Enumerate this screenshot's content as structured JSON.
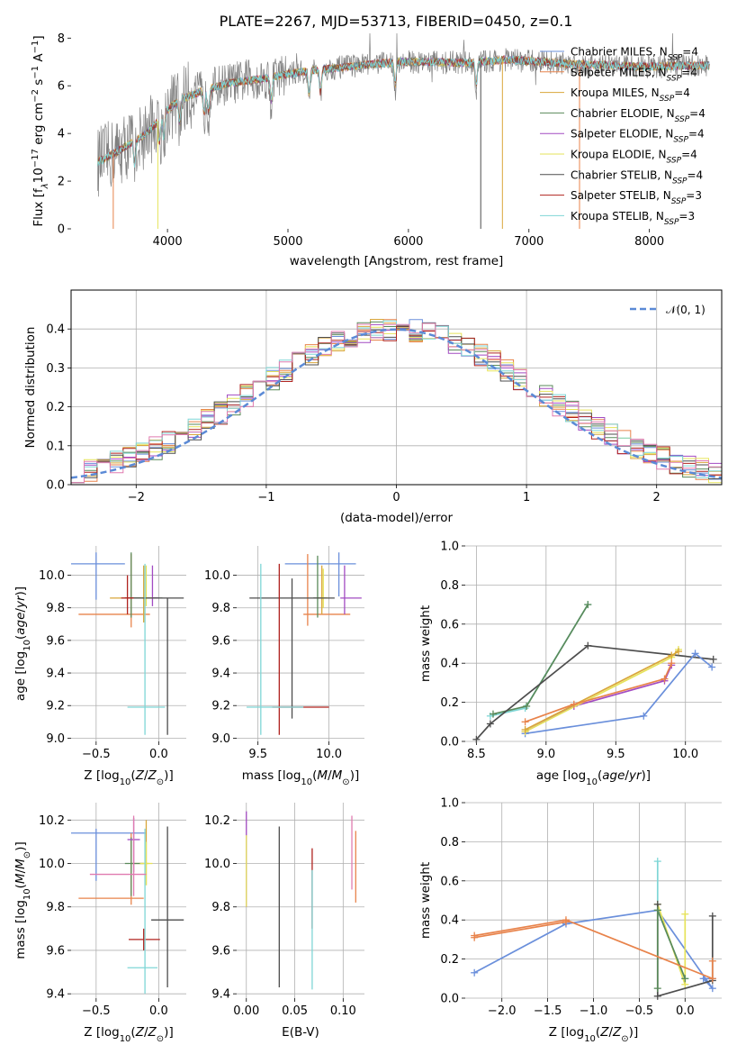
{
  "figure": {
    "title": "PLATE=2267, MJD=53713, FIBERID=0450, z=0.1"
  },
  "palette": {
    "chabrier_miles": "#6a8fdb",
    "salpeter_miles": "#e8834b",
    "kroupa_miles": "#d9a63a",
    "chabrier_elodie": "#5a8a5a",
    "salpeter_elodie": "#a24bc2",
    "kroupa_elodie": "#e6e35a",
    "chabrier_stelib": "#4d4d4d",
    "salpeter_stelib": "#b0231f",
    "kroupa_stelib": "#7fd6d6",
    "data": "#808080",
    "gaussian": "#5b8ad6",
    "grid": "#b0b0b0"
  },
  "chart_data": [
    {
      "id": "spectrum",
      "type": "line",
      "title": "PLATE=2267, MJD=53713, FIBERID=0450, z=0.1",
      "xlabel": "wavelength [Angstrom, rest frame]",
      "ylabel_parts": [
        "Flux [f",
        "λ",
        "10",
        "−17",
        " erg cm",
        "−2",
        " s",
        "−1",
        " A",
        "−1",
        "]"
      ],
      "xlim": [
        3200,
        8600
      ],
      "ylim": [
        0,
        8.2
      ],
      "xticks": [
        4000,
        5000,
        6000,
        7000,
        8000
      ],
      "yticks": [
        0,
        2,
        4,
        6,
        8
      ],
      "grid": false,
      "legend_placement": "right",
      "legend": [
        {
          "label": "Chabrier MILES, N",
          "sub": "SSP",
          "eq": "=4",
          "color_key": "chabrier_miles"
        },
        {
          "label": "Salpeter MILES, N",
          "sub": "SSP",
          "eq": "=4",
          "color_key": "salpeter_miles"
        },
        {
          "label": "Kroupa MILES, N",
          "sub": "SSP",
          "eq": "=4",
          "color_key": "kroupa_miles"
        },
        {
          "label": "Chabrier ELODIE, N",
          "sub": "SSP",
          "eq": "=4",
          "color_key": "chabrier_elodie"
        },
        {
          "label": "Salpeter ELODIE, N",
          "sub": "SSP",
          "eq": "=4",
          "color_key": "salpeter_elodie"
        },
        {
          "label": "Kroupa ELODIE, N",
          "sub": "SSP",
          "eq": "=4",
          "color_key": "kroupa_elodie"
        },
        {
          "label": "Chabrier STELIB, N",
          "sub": "SSP",
          "eq": "=4",
          "color_key": "chabrier_stelib"
        },
        {
          "label": "Salpeter STELIB, N",
          "sub": "SSP",
          "eq": "=3",
          "color_key": "salpeter_stelib"
        },
        {
          "label": "Kroupa STELIB, N",
          "sub": "SSP",
          "eq": "=3",
          "color_key": "kroupa_stelib"
        }
      ],
      "continuum": {
        "x": [
          3420,
          3500,
          3600,
          3700,
          3800,
          3900,
          4000,
          4100,
          4300,
          4500,
          4800,
          5000,
          5300,
          5600,
          5900,
          6200,
          6500,
          6800,
          7100,
          7400,
          7700,
          8000,
          8300,
          8500
        ],
        "y": [
          2.8,
          3.0,
          3.3,
          3.6,
          3.9,
          4.4,
          5.0,
          5.4,
          5.8,
          6.1,
          6.3,
          6.5,
          6.7,
          6.85,
          7.0,
          7.0,
          6.95,
          7.1,
          7.0,
          6.9,
          6.85,
          6.8,
          6.85,
          6.85
        ]
      },
      "absorption_lines": [
        3728,
        3934,
        3969,
        4102,
        4304,
        4340,
        4861,
        5175,
        5270,
        5890,
        6563
      ],
      "spikes": [
        {
          "x": 3550,
          "to": 0,
          "color_key": "salpeter_miles"
        },
        {
          "x": 3920,
          "to": 0,
          "color_key": "kroupa_elodie"
        },
        {
          "x": 6600,
          "to": 0,
          "color_key": "chabrier_stelib"
        },
        {
          "x": 6780,
          "to": 0,
          "color_key": "kroupa_miles"
        },
        {
          "x": 7420,
          "to": 0,
          "color_key": "salpeter_miles"
        }
      ]
    },
    {
      "id": "residuals",
      "type": "histogram",
      "xlabel": "(data-model)/error",
      "ylabel": "Normed distribution",
      "xlim": [
        -2.5,
        2.5
      ],
      "ylim": [
        0,
        0.5
      ],
      "xticks": [
        -2,
        -1,
        0,
        1,
        2
      ],
      "yticks": [
        0.0,
        0.1,
        0.2,
        0.3,
        0.4
      ],
      "grid": true,
      "legend_placement": "top-right",
      "legend": [
        {
          "label": "𝒩(0, 1)",
          "color_key": "gaussian",
          "dashed": true
        }
      ],
      "bin_width": 0.1
    },
    {
      "id": "age_vs_Z",
      "type": "errorbar",
      "xlabel": "Z [log10(Z/Z⊙)]",
      "ylabel": "age [log10(age/yr)]",
      "xlim": [
        -0.7,
        0.22
      ],
      "ylim": [
        8.98,
        10.18
      ],
      "xticks": [
        -0.5,
        0.0
      ],
      "yticks": [
        9.0,
        9.2,
        9.4,
        9.6,
        9.8,
        10.0
      ],
      "grid": true,
      "points": [
        {
          "x": -0.5,
          "y": 10.07,
          "xerr": [
            0.2,
            0.23
          ],
          "yerr": [
            0.22,
            0.07
          ],
          "color_key": "chabrier_miles"
        },
        {
          "x": -0.22,
          "y": 9.76,
          "xerr": [
            0.42,
            0.15
          ],
          "yerr": [
            0.08,
            0.37
          ],
          "color_key": "salpeter_miles"
        },
        {
          "x": -0.12,
          "y": 9.86,
          "xerr": [
            0.27,
            0.1
          ],
          "yerr": [
            0.15,
            0.2
          ],
          "color_key": "kroupa_miles"
        },
        {
          "x": -0.22,
          "y": 9.86,
          "xerr": [
            0.05,
            0.25
          ],
          "yerr": [
            0.12,
            0.28
          ],
          "color_key": "chabrier_elodie"
        },
        {
          "x": -0.05,
          "y": 9.86,
          "xerr": [
            0.05,
            0.05
          ],
          "yerr": [
            0.05,
            0.2
          ],
          "color_key": "salpeter_elodie"
        },
        {
          "x": -0.1,
          "y": 9.86,
          "xerr": [
            0.05,
            0.05
          ],
          "yerr": [
            0.05,
            0.2
          ],
          "color_key": "kroupa_elodie"
        },
        {
          "x": 0.07,
          "y": 9.86,
          "xerr": [
            0.34,
            0.13
          ],
          "yerr": [
            0.84,
            0.0
          ],
          "color_key": "chabrier_stelib"
        },
        {
          "x": -0.25,
          "y": 9.86,
          "xerr": [
            0.05,
            0.05
          ],
          "yerr": [
            0.1,
            0.14
          ],
          "color_key": "salpeter_stelib"
        },
        {
          "x": -0.11,
          "y": 9.19,
          "xerr": [
            0.14,
            0.16
          ],
          "yerr": [
            0.17,
            0.88
          ],
          "color_key": "kroupa_stelib"
        }
      ]
    },
    {
      "id": "age_vs_mass",
      "type": "errorbar",
      "xlabel": "mass [log10(M/M⊙)]",
      "ylabel": "",
      "xlim": [
        9.35,
        10.25
      ],
      "ylim": [
        8.98,
        10.18
      ],
      "xticks": [
        9.5,
        10.0
      ],
      "yticks": [
        9.0,
        9.2,
        9.4,
        9.6,
        9.8,
        10.0
      ],
      "grid": true,
      "points": [
        {
          "x": 10.07,
          "y": 10.07,
          "xerr": [
            0.38,
            0.12
          ],
          "yerr": [
            0.2,
            0.07
          ],
          "color_key": "chabrier_miles"
        },
        {
          "x": 9.85,
          "y": 9.76,
          "xerr": [
            0.03,
            0.3
          ],
          "yerr": [
            0.07,
            0.37
          ],
          "color_key": "salpeter_miles"
        },
        {
          "x": 9.95,
          "y": 9.86,
          "xerr": [
            0.03,
            0.03
          ],
          "yerr": [
            0.1,
            0.2
          ],
          "color_key": "kroupa_miles"
        },
        {
          "x": 9.92,
          "y": 9.86,
          "xerr": [
            0.03,
            0.03
          ],
          "yerr": [
            0.12,
            0.26
          ],
          "color_key": "chabrier_elodie"
        },
        {
          "x": 10.11,
          "y": 9.86,
          "xerr": [
            0.03,
            0.12
          ],
          "yerr": [
            0.1,
            0.2
          ],
          "color_key": "salpeter_elodie"
        },
        {
          "x": 9.96,
          "y": 9.86,
          "xerr": [
            0.03,
            0.03
          ],
          "yerr": [
            0.06,
            0.18
          ],
          "color_key": "kroupa_elodie"
        },
        {
          "x": 9.74,
          "y": 9.86,
          "xerr": [
            0.3,
            0.3
          ],
          "yerr": [
            0.74,
            0.12
          ],
          "color_key": "chabrier_stelib"
        },
        {
          "x": 9.65,
          "y": 9.19,
          "xerr": [
            0.05,
            0.35
          ],
          "yerr": [
            0.17,
            0.88
          ],
          "color_key": "salpeter_stelib"
        },
        {
          "x": 9.52,
          "y": 9.19,
          "xerr": [
            0.1,
            0.3
          ],
          "yerr": [
            0.17,
            0.88
          ],
          "color_key": "kroupa_stelib"
        }
      ]
    },
    {
      "id": "weight_vs_age",
      "type": "line",
      "xlabel": "age [log10(age/yr)]",
      "ylabel": "mass weight",
      "xlim": [
        8.42,
        10.26
      ],
      "ylim": [
        0,
        1.0
      ],
      "xticks": [
        8.5,
        9.0,
        9.5,
        10.0
      ],
      "yticks": [
        0.0,
        0.2,
        0.4,
        0.6,
        0.8,
        1.0
      ],
      "grid": true,
      "series": [
        {
          "color_key": "kroupa_stelib",
          "x": [
            8.6,
            8.85,
            9.3
          ],
          "y": [
            0.13,
            0.17,
            0.7
          ]
        },
        {
          "color_key": "chabrier_elodie",
          "x": [
            8.62,
            8.86,
            9.3
          ],
          "y": [
            0.14,
            0.18,
            0.7
          ]
        },
        {
          "color_key": "chabrier_stelib",
          "x": [
            8.5,
            8.6,
            9.3,
            10.2
          ],
          "y": [
            0.01,
            0.09,
            0.49,
            0.42
          ]
        },
        {
          "color_key": "salpeter_elodie",
          "x": [
            8.85,
            9.2,
            9.85,
            9.9
          ],
          "y": [
            0.05,
            0.18,
            0.31,
            0.39
          ]
        },
        {
          "color_key": "chabrier_miles",
          "x": [
            8.85,
            9.7,
            10.07,
            10.19
          ],
          "y": [
            0.04,
            0.13,
            0.45,
            0.38
          ]
        },
        {
          "color_key": "kroupa_elodie",
          "x": [
            8.85,
            9.9,
            9.95
          ],
          "y": [
            0.05,
            0.43,
            0.47
          ]
        },
        {
          "color_key": "kroupa_miles",
          "x": [
            8.85,
            9.9,
            9.95
          ],
          "y": [
            0.06,
            0.44,
            0.46
          ]
        },
        {
          "color_key": "salpeter_miles",
          "x": [
            8.85,
            9.2,
            9.85,
            9.9
          ],
          "y": [
            0.1,
            0.19,
            0.32,
            0.4
          ]
        }
      ]
    },
    {
      "id": "mass_vs_Z",
      "type": "errorbar",
      "xlabel": "Z [log10(Z/Z⊙)]",
      "ylabel": "mass [log10(M/M⊙)]",
      "xlim": [
        -0.7,
        0.22
      ],
      "ylim": [
        9.38,
        10.28
      ],
      "xticks": [
        -0.5,
        0.0
      ],
      "yticks": [
        9.4,
        9.6,
        9.8,
        10.0,
        10.2
      ],
      "grid": true,
      "points": [
        {
          "x": -0.5,
          "y": 10.14,
          "xerr": [
            0.2,
            0.4
          ],
          "yerr": [
            0.22,
            0.02
          ],
          "color_key": "chabrier_miles"
        },
        {
          "x": -0.22,
          "y": 9.84,
          "xerr": [
            0.42,
            0.1
          ],
          "yerr": [
            0.03,
            0.3
          ],
          "color_key": "salpeter_miles"
        },
        {
          "x": -0.1,
          "y": 10.0,
          "xerr": [
            0.12,
            0.02
          ],
          "yerr": [
            0.1,
            0.2
          ],
          "color_key": "kroupa_miles"
        },
        {
          "x": -0.22,
          "y": 10.0,
          "xerr": [
            0.05,
            0.1
          ],
          "yerr": [
            0.15,
            0.12
          ],
          "color_key": "chabrier_elodie"
        },
        {
          "x": -0.2,
          "y": 10.11,
          "xerr": [
            0.05,
            0.05
          ],
          "yerr": [
            0.15,
            0.1
          ],
          "color_key": "salpeter_elodie"
        },
        {
          "x": -0.1,
          "y": 10.0,
          "xerr": [
            0.05,
            0.05
          ],
          "yerr": [
            0.1,
            0.1
          ],
          "color_key": "kroupa_elodie"
        },
        {
          "x": 0.07,
          "y": 9.74,
          "xerr": [
            0.13,
            0.13
          ],
          "yerr": [
            0.31,
            0.43
          ],
          "color_key": "chabrier_stelib"
        },
        {
          "x": -0.12,
          "y": 9.65,
          "xerr": [
            0.12,
            0.13
          ],
          "yerr": [
            0.05,
            0.05
          ],
          "color_key": "salpeter_stelib"
        },
        {
          "x": -0.11,
          "y": 9.52,
          "xerr": [
            0.14,
            0.1
          ],
          "yerr": [
            0.12,
            0.64
          ],
          "color_key": "kroupa_stelib"
        },
        {
          "x": -0.2,
          "y": 9.95,
          "xerr": [
            0.35,
            0.1
          ],
          "yerr": [
            0.1,
            0.27
          ],
          "color_key": "salpeter_miles_alt"
        }
      ]
    },
    {
      "id": "mass_vs_ebv",
      "type": "errorbar",
      "xlabel": "E(B-V)",
      "ylabel": "",
      "xlim": [
        -0.01,
        0.122
      ],
      "ylim": [
        9.38,
        10.28
      ],
      "xticks": [
        0.0,
        0.05,
        0.1
      ],
      "yticks": [
        9.4,
        9.6,
        9.8,
        10.0,
        10.2
      ],
      "grid": true,
      "points": [
        {
          "x": 0.0,
          "y": 10.0,
          "yerr": [
            0.2,
            0.24
          ],
          "color_key": "salpeter_elodie"
        },
        {
          "x": 0.0,
          "y": 9.95,
          "yerr": [
            0.15,
            0.18
          ],
          "color_key": "kroupa_elodie"
        },
        {
          "x": 0.034,
          "y": 9.8,
          "yerr": [
            0.37,
            0.37
          ],
          "color_key": "chabrier_stelib"
        },
        {
          "x": 0.068,
          "y": 9.8,
          "yerr": [
            0.1,
            0.27
          ],
          "color_key": "salpeter_stelib"
        },
        {
          "x": 0.068,
          "y": 9.7,
          "yerr": [
            0.28,
            0.27
          ],
          "color_key": "kroupa_stelib"
        },
        {
          "x": 0.109,
          "y": 10.0,
          "yerr": [
            0.12,
            0.22
          ],
          "color_key": "salpeter_miles_alt"
        },
        {
          "x": 0.113,
          "y": 9.95,
          "yerr": [
            0.13,
            0.2
          ],
          "color_key": "salpeter_miles"
        }
      ]
    },
    {
      "id": "weight_vs_Z",
      "type": "line",
      "xlabel": "Z [log10(Z/Z⊙)]",
      "ylabel": "mass weight",
      "xlim": [
        -2.4,
        0.4
      ],
      "ylim": [
        0,
        1.0
      ],
      "xticks": [
        -2.0,
        -1.5,
        -1.0,
        -0.5,
        0.0
      ],
      "yticks": [
        0.0,
        0.2,
        0.4,
        0.6,
        0.8,
        1.0
      ],
      "grid": true,
      "series": [
        {
          "color_key": "chabrier_miles",
          "x": [
            -2.3,
            -1.3,
            -0.3,
            0.3,
            0.2,
            0.3
          ],
          "y": [
            0.13,
            0.38,
            0.45,
            0.05,
            0.1,
            0.1
          ]
        },
        {
          "color_key": "kroupa_stelib",
          "x": [
            -0.3,
            -0.3,
            0.0
          ],
          "y": [
            0.7,
            0.45,
            0.1
          ]
        },
        {
          "color_key": "kroupa_elodie",
          "x": [
            -0.3,
            0.0,
            0.0
          ],
          "y": [
            0.48,
            0.07,
            0.43
          ]
        },
        {
          "color_key": "chabrier_stelib",
          "x": [
            -0.3,
            -0.3,
            0.3,
            0.3
          ],
          "y": [
            0.48,
            0.01,
            0.09,
            0.42
          ]
        },
        {
          "color_key": "chabrier_elodie",
          "x": [
            -0.3,
            -0.3,
            0.0
          ],
          "y": [
            0.05,
            0.45,
            0.1
          ]
        },
        {
          "color_key": "salpeter_miles",
          "x": [
            -2.3,
            -1.3,
            0.3,
            0.3
          ],
          "y": [
            0.32,
            0.4,
            0.1,
            0.19
          ]
        },
        {
          "color_key": "salpeter_miles",
          "x": [
            -2.3,
            -1.3
          ],
          "y": [
            0.31,
            0.39
          ]
        }
      ]
    }
  ]
}
